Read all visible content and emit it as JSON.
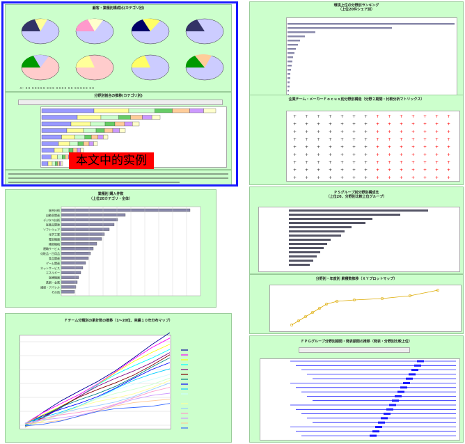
{
  "panels": {
    "pie": {
      "title": "顧客・業種別構成比(カテゴリ別)",
      "footer": "Ａ：ＸＸ ＸＸＸＸＸ ＸＸＸ ＸＸＸＸ ＸＸ ＸＸＸＸＸ ＸＸ"
    },
    "stacked": {
      "title": "分野別割合の推移(カテゴリ別)"
    },
    "ranking": {
      "title": "業種別 購入件数",
      "subtitle": "（上位20カテゴリ・全体）"
    },
    "lines": {
      "title": "Ｆチーム分類別の累計数の推移（1〜20位、実績１０年分布マップ）"
    },
    "rankright": {
      "title": "環境上位の分野別ランキング",
      "subtitle": "（上位20件シェア別）"
    },
    "matrix": {
      "title": "企業チーム・メーカーＦｏｃｕｓ別分野別構造（分野２期間・比較分析マトリックス）"
    },
    "mixed": {
      "title": "ＰＳグループ別分野別構成比",
      "subtitle": "（上位20、分野別比較上位グループ）"
    },
    "scatter": {
      "title": "分野別・年度別 累積数推移（ＸＹプロットマップ）"
    },
    "gantt": {
      "title": "ＦＰＧグループ分野別期間・発表期間の推移（発表・分野別比較上位）"
    }
  },
  "stamp": "本文中的实例",
  "ranking_labels": [
    "総合技術",
    "自動車関連",
    "デジタル技術",
    "医薬品関連",
    "ソフトウェア",
    "化学工業",
    "電気機器",
    "精密機械",
    "運輸サービス",
    "化粧品・日用品",
    "食品関連",
    "ゲーム関連",
    "ネットサービス",
    "エネルギー",
    "医療機器",
    "鉄鋼・金属",
    "繊維・アパレル",
    "その他"
  ],
  "ranking_values": [
    18.5,
    9.2,
    8.1,
    7.6,
    6.9,
    6.2,
    5.8,
    5.1,
    4.6,
    4.2,
    3.9,
    3.5,
    3.1,
    2.8,
    2.5,
    2.3,
    2.1,
    1.9
  ],
  "colors": {
    "accent": "#1a1aff",
    "panel": "#ccffcc",
    "stamp": "#ff0000"
  }
}
